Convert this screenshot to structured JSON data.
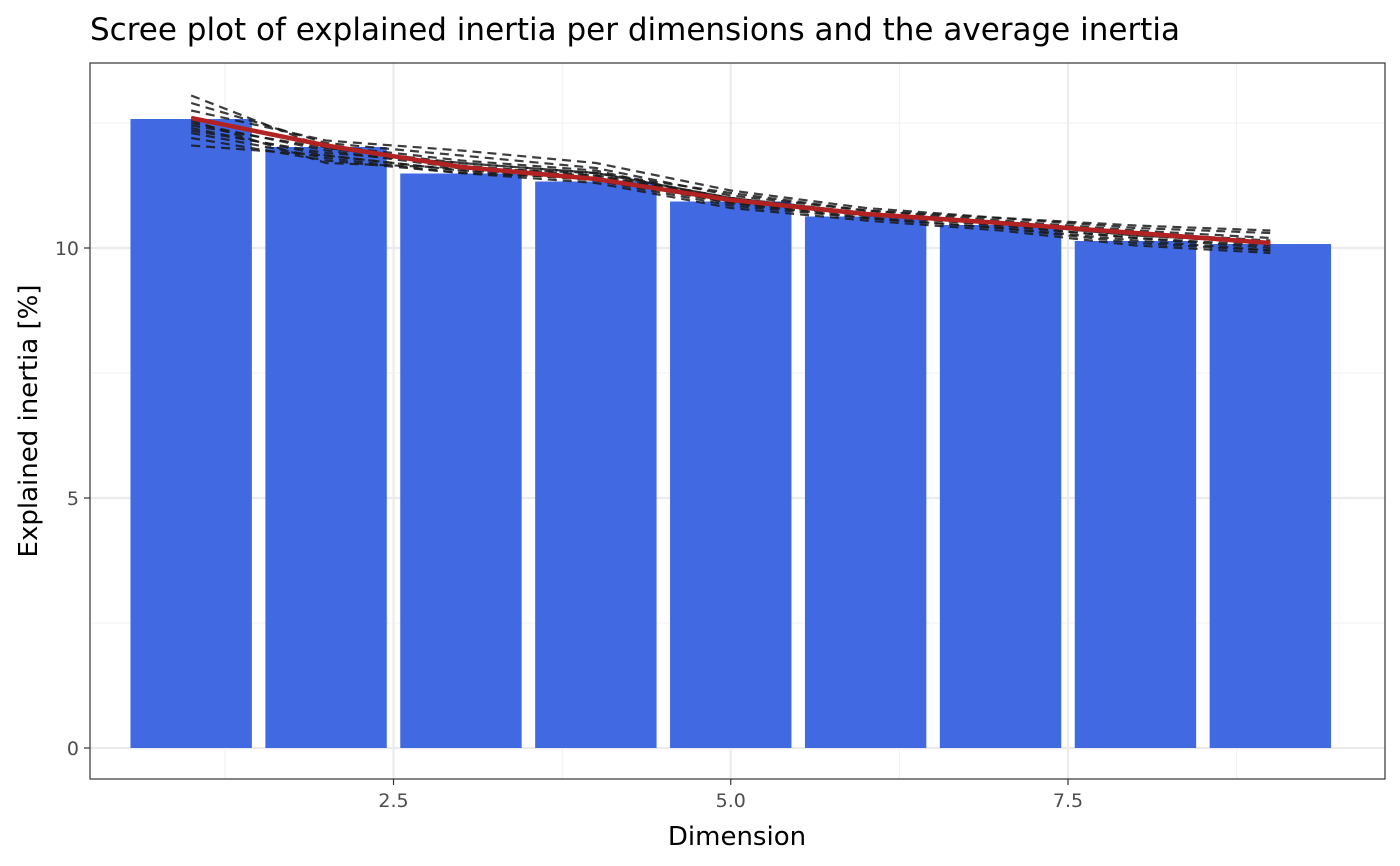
{
  "chart_data": {
    "type": "bar",
    "title": "Scree plot of explained inertia per dimensions and the average inertia",
    "xlabel": "Dimension",
    "ylabel": "Explained inertia [%]",
    "xlim": [
      0.25,
      9.85
    ],
    "ylim": [
      -0.62,
      13.7
    ],
    "x_ticks": [
      2.5,
      5.0,
      7.5
    ],
    "x_tick_labels": [
      "2.5",
      "5.0",
      "7.5"
    ],
    "y_ticks": [
      0,
      5,
      10
    ],
    "y_tick_labels": [
      "0",
      "5",
      "10"
    ],
    "grid": true,
    "legend": "none",
    "colors": {
      "bars": "#4169E1",
      "average": "#B22222",
      "simulations": "#1a1a1a"
    },
    "x": [
      1,
      2,
      3,
      4,
      5,
      6,
      7,
      8,
      9
    ],
    "values": [
      12.58,
      12.02,
      11.49,
      11.33,
      10.93,
      10.63,
      10.46,
      10.14,
      10.08
    ],
    "average_line": {
      "x": [
        1,
        2,
        3,
        4,
        5,
        6,
        7,
        8,
        9
      ],
      "y": [
        12.6,
        12.05,
        11.62,
        11.38,
        10.96,
        10.68,
        10.5,
        10.3,
        10.1
      ]
    },
    "simulation_lines": [
      {
        "x": [
          1,
          2,
          3,
          4,
          5,
          6,
          7,
          8,
          9
        ],
        "y": [
          13.05,
          12.0,
          11.7,
          11.5,
          11.0,
          10.7,
          10.5,
          10.25,
          10.12
        ]
      },
      {
        "x": [
          1,
          2,
          3,
          4,
          5,
          6,
          7,
          8,
          9
        ],
        "y": [
          12.9,
          12.1,
          11.85,
          11.6,
          11.05,
          10.75,
          10.55,
          10.35,
          10.2
        ]
      },
      {
        "x": [
          1,
          2,
          3,
          4,
          5,
          6,
          7,
          8,
          9
        ],
        "y": [
          12.75,
          12.15,
          11.95,
          11.7,
          11.15,
          10.8,
          10.6,
          10.45,
          10.35
        ]
      },
      {
        "x": [
          1,
          2,
          3,
          4,
          5,
          6,
          7,
          8,
          9
        ],
        "y": [
          12.6,
          12.05,
          11.75,
          11.55,
          10.95,
          10.7,
          10.5,
          10.3,
          10.1
        ]
      },
      {
        "x": [
          1,
          2,
          3,
          4,
          5,
          6,
          7,
          8,
          9
        ],
        "y": [
          12.5,
          11.95,
          11.6,
          11.4,
          10.9,
          10.65,
          10.45,
          10.2,
          10.0
        ]
      },
      {
        "x": [
          1,
          2,
          3,
          4,
          5,
          6,
          7,
          8,
          9
        ],
        "y": [
          12.4,
          11.85,
          11.55,
          11.35,
          10.85,
          10.6,
          10.4,
          10.1,
          9.95
        ]
      },
      {
        "x": [
          1,
          2,
          3,
          4,
          5,
          6,
          7,
          8,
          9
        ],
        "y": [
          12.3,
          11.8,
          11.5,
          11.3,
          10.8,
          10.55,
          10.35,
          10.05,
          9.9
        ]
      },
      {
        "x": [
          1,
          2,
          3,
          4,
          5,
          6,
          7,
          8,
          9
        ],
        "y": [
          12.2,
          11.75,
          11.5,
          11.4,
          10.9,
          10.6,
          10.4,
          10.15,
          9.95
        ]
      },
      {
        "x": [
          1,
          2,
          3,
          4,
          5,
          6,
          7,
          8,
          9
        ],
        "y": [
          12.05,
          11.85,
          11.55,
          11.45,
          11.0,
          10.65,
          10.5,
          10.3,
          10.15
        ]
      },
      {
        "x": [
          1,
          2,
          3,
          4,
          5,
          6,
          7,
          8,
          9
        ],
        "y": [
          12.55,
          11.7,
          11.6,
          11.5,
          11.1,
          10.75,
          10.6,
          10.4,
          10.3
        ]
      },
      {
        "x": [
          1,
          2,
          3,
          4,
          5,
          6,
          7,
          8,
          9
        ],
        "y": [
          12.45,
          12.0,
          11.65,
          11.45,
          10.95,
          10.7,
          10.45,
          10.2,
          10.05
        ]
      },
      {
        "x": [
          1,
          2,
          3,
          4,
          5,
          6,
          7,
          8,
          9
        ],
        "y": [
          12.35,
          11.9,
          11.7,
          11.5,
          11.0,
          10.7,
          10.5,
          10.25,
          10.1
        ]
      }
    ]
  }
}
